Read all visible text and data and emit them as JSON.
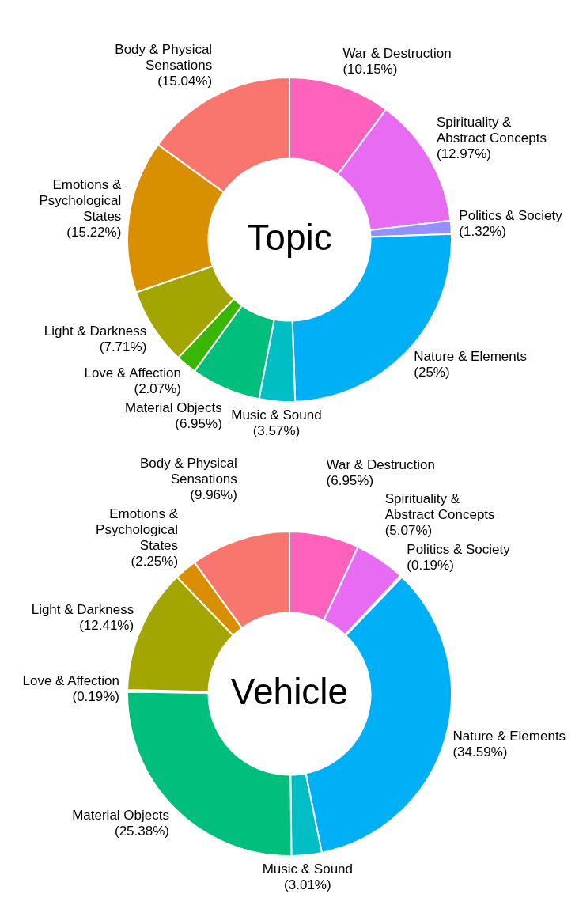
{
  "chart_data": [
    {
      "type": "donut",
      "title": "Topic",
      "categories": [
        "War & Destruction",
        "Spirituality & Abstract Concepts",
        "Politics & Society",
        "Nature & Elements",
        "Music & Sound",
        "Material Objects",
        "Love & Affection",
        "Light & Darkness",
        "Emotions & Psychological States",
        "Body & Physical Sensations"
      ],
      "values": [
        10.15,
        12.97,
        1.32,
        25,
        3.57,
        6.95,
        2.07,
        7.71,
        15.22,
        15.04
      ],
      "value_labels": [
        "(10.15%)",
        "(12.97%)",
        "(1.32%)",
        "(25%)",
        "(3.57%)",
        "(6.95%)",
        "(2.07%)",
        "(7.71%)",
        "(15.22%)",
        "(15.04%)"
      ],
      "colors": [
        "#ff62bc",
        "#e76bf3",
        "#9590ff",
        "#00b0f6",
        "#00bfc4",
        "#00bf7d",
        "#39b600",
        "#a3a500",
        "#d89000",
        "#f8766d"
      ],
      "legend": false
    },
    {
      "type": "donut",
      "title": "Vehicle",
      "categories": [
        "War & Destruction",
        "Spirituality & Abstract Concepts",
        "Politics & Society",
        "Nature & Elements",
        "Music & Sound",
        "Material Objects",
        "Love & Affection",
        "Light & Darkness",
        "Emotions & Psychological States",
        "Body & Physical Sensations"
      ],
      "values": [
        6.95,
        5.07,
        0.19,
        34.59,
        3.01,
        25.38,
        0.19,
        12.41,
        2.25,
        9.96
      ],
      "value_labels": [
        "(6.95%)",
        "(5.07%)",
        "(0.19%)",
        "(34.59%)",
        "(3.01%)",
        "(25.38%)",
        "(0.19%)",
        "(12.41%)",
        "(2.25%)",
        "(9.96%)"
      ],
      "colors": [
        "#ff62bc",
        "#e76bf3",
        "#9590ff",
        "#00b0f6",
        "#00bfc4",
        "#00bf7d",
        "#39b600",
        "#a3a500",
        "#d89000",
        "#f8766d"
      ],
      "legend": false
    }
  ]
}
